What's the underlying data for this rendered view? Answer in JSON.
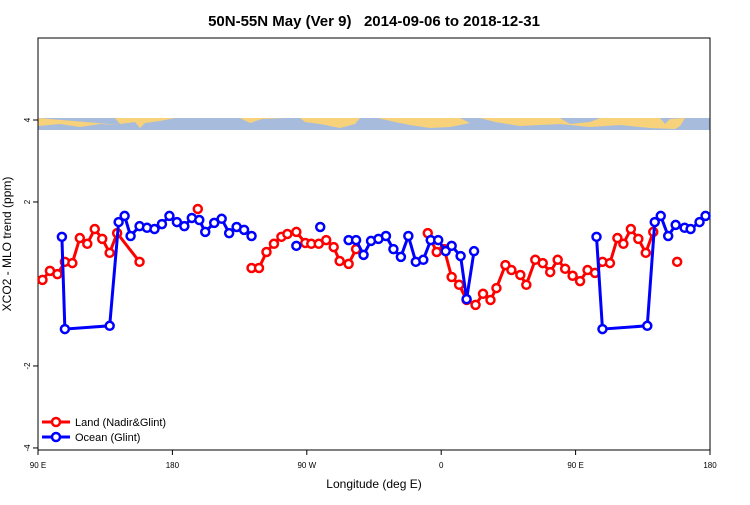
{
  "chart_data": {
    "type": "line",
    "title": "50N-55N May (Ver 9)   2014-09-06 to 2018-12-31",
    "x_label": "Longitude (deg E)",
    "y_label": "XCO2 - MLO trend (ppm)",
    "xlim": [
      90,
      540
    ],
    "ylim": [
      -4.05,
      6
    ],
    "xticks": [
      {
        "value": 90,
        "label": "90 E"
      },
      180,
      {
        "value": 270,
        "label": "90 W"
      },
      {
        "value": 360,
        "label": "0"
      },
      {
        "value": 450,
        "label": "90 E"
      },
      {
        "value": 540,
        "label": "180"
      }
    ],
    "yticks": [
      -4,
      -2,
      2,
      4
    ],
    "legend": "bottom-left",
    "series": [
      {
        "name": "Land (Nadir&Glint)",
        "color": "#ff0000",
        "x": [
          93,
          98,
          103,
          108,
          113,
          118,
          123,
          128,
          133,
          138,
          143,
          158,
          null,
          197,
          null,
          233,
          238,
          243,
          248,
          253,
          257,
          263,
          269,
          273,
          278,
          283,
          288,
          292,
          298,
          303,
          null,
          351,
          357,
          362,
          367,
          372,
          377,
          383,
          388,
          393,
          397,
          403,
          407,
          413,
          417,
          423,
          428,
          433,
          438,
          443,
          448,
          453,
          458,
          463,
          468,
          473,
          478,
          482,
          487,
          492,
          497,
          502,
          null,
          518
        ],
        "values": [
          0.1,
          0.32,
          0.24,
          0.54,
          0.51,
          1.12,
          0.98,
          1.34,
          1.1,
          0.76,
          1.24,
          0.54,
          null,
          1.83,
          null,
          0.39,
          0.39,
          0.78,
          0.98,
          1.15,
          1.22,
          1.27,
          1.0,
          0.98,
          0.98,
          1.07,
          0.9,
          0.56,
          0.49,
          0.85,
          null,
          1.24,
          0.78,
          0.85,
          0.17,
          -0.02,
          -0.39,
          -0.51,
          -0.24,
          -0.39,
          -0.1,
          0.46,
          0.34,
          0.22,
          -0.02,
          0.59,
          0.51,
          0.29,
          0.59,
          0.37,
          0.2,
          0.07,
          0.34,
          0.27,
          0.54,
          0.51,
          1.12,
          0.98,
          1.34,
          1.1,
          0.76,
          1.27,
          null,
          0.54
        ]
      },
      {
        "name": "Ocean (Glint)",
        "color": "#0000ff",
        "x": [
          106,
          108,
          138,
          144,
          148,
          152,
          158,
          163,
          168,
          173,
          178,
          183,
          188,
          193,
          198,
          202,
          208,
          213,
          218,
          223,
          228,
          233,
          null,
          263,
          null,
          279,
          null,
          298,
          303,
          308,
          313,
          318,
          323,
          328,
          333,
          338,
          343,
          348,
          353,
          358,
          363,
          367,
          373,
          377,
          382,
          null,
          464,
          468,
          498,
          503,
          507,
          512,
          517,
          523,
          527,
          533,
          537
        ],
        "values": [
          1.15,
          -1.1,
          -1.02,
          1.51,
          1.66,
          1.17,
          1.41,
          1.37,
          1.34,
          1.46,
          1.66,
          1.51,
          1.41,
          1.61,
          1.56,
          1.27,
          1.49,
          1.59,
          1.24,
          1.39,
          1.32,
          1.17,
          null,
          0.93,
          null,
          1.39,
          null,
          1.07,
          1.07,
          0.71,
          1.05,
          1.1,
          1.17,
          0.85,
          0.66,
          1.17,
          0.54,
          0.59,
          1.07,
          1.07,
          0.8,
          0.93,
          0.68,
          -0.37,
          0.8,
          null,
          1.15,
          -1.1,
          -1.02,
          1.51,
          1.66,
          1.17,
          1.44,
          1.37,
          1.34,
          1.51,
          1.66
        ]
      }
    ]
  }
}
